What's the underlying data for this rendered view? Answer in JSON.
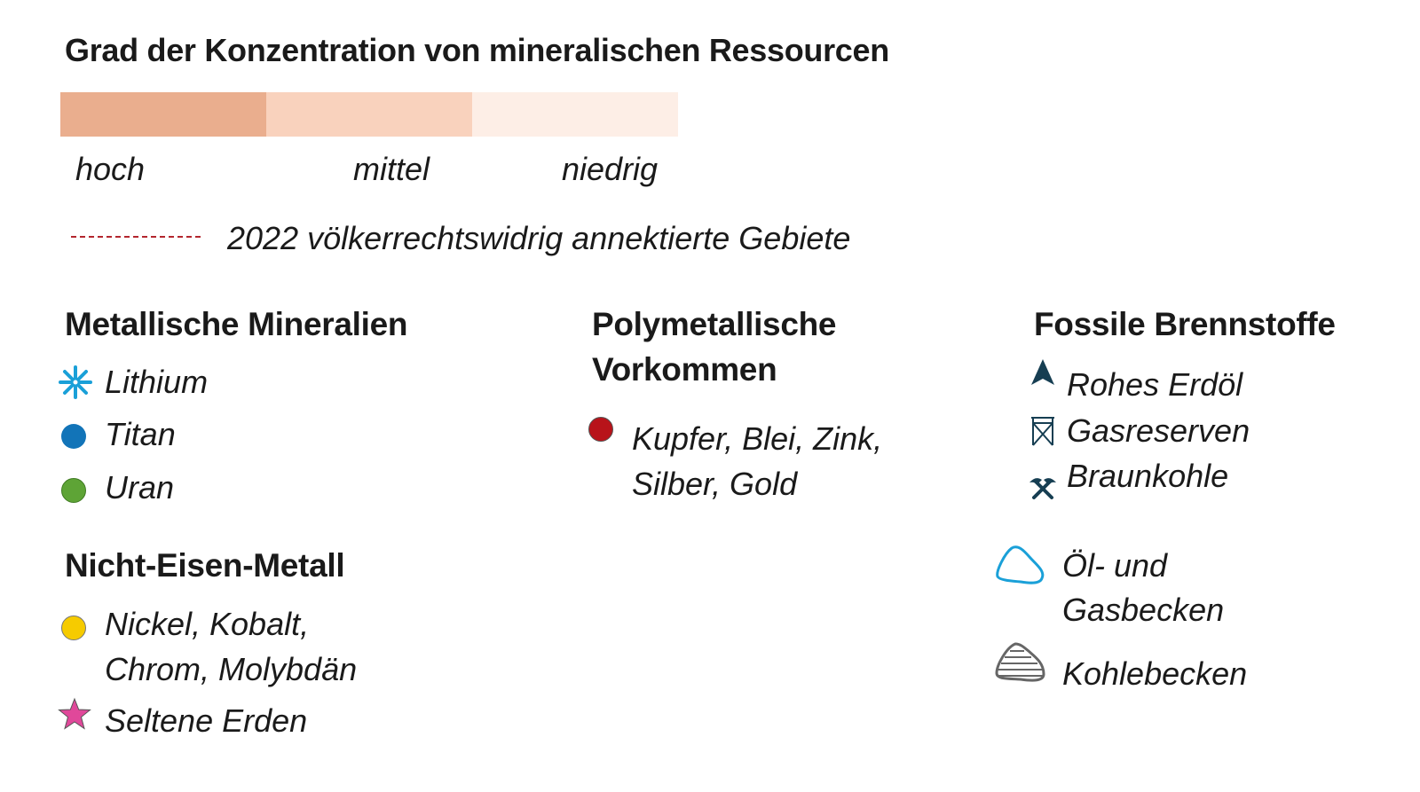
{
  "title": "Grad der Konzentration von mineralischen Ressourcen",
  "scale": {
    "levels": [
      {
        "label": "hoch",
        "color": "#eaae8e"
      },
      {
        "label": "mittel",
        "color": "#f9d2bd"
      },
      {
        "label": "niedrig",
        "color": "#fdeee6"
      }
    ]
  },
  "annexed": {
    "label": "2022 völkerrechtswidrig annektierte Gebiete",
    "color": "#b3262e"
  },
  "metallic": {
    "heading": "Metallische Mineralien",
    "items": [
      {
        "label": "Lithium",
        "icon": "asterisk-icon",
        "color": "#1aa0d8"
      },
      {
        "label": "Titan",
        "icon": "circle-icon",
        "color": "#1274b8"
      },
      {
        "label": "Uran",
        "icon": "circle-icon",
        "color": "#5ea436"
      }
    ]
  },
  "nonferrous": {
    "heading": "Nicht-Eisen-Metall",
    "items": [
      {
        "label_line1": "Nickel, Kobalt,",
        "label_line2": "Chrom, Molybdän",
        "icon": "circle-icon",
        "color": "#f6cb00"
      },
      {
        "label": "Seltene Erden",
        "icon": "star-icon",
        "color": "#e0489a"
      }
    ]
  },
  "polymetallic": {
    "heading_line1": "Polymetallische",
    "heading_line2": "Vorkommen",
    "item": {
      "label_line1": "Kupfer, Blei, Zink,",
      "label_line2": "Silber, Gold",
      "icon": "circle-icon",
      "color": "#b8131a"
    }
  },
  "fossil": {
    "heading": "Fossile Brennstoffe",
    "items": [
      {
        "label": "Rohes Erdöl",
        "icon": "oil-derrick-icon",
        "color": "#163e52"
      },
      {
        "label": "Gasreserven",
        "icon": "gas-tower-icon",
        "color": "#163e52"
      },
      {
        "label": "Braunkohle",
        "icon": "hammer-pick-icon",
        "color": "#163e52"
      }
    ],
    "basins": [
      {
        "label_line1": "Öl- und",
        "label_line2": "Gasbecken",
        "icon": "oil-gas-basin-icon",
        "color": "#1aa0d8"
      },
      {
        "label": "Kohlebecken",
        "icon": "coal-basin-icon",
        "color": "#666666"
      }
    ]
  }
}
